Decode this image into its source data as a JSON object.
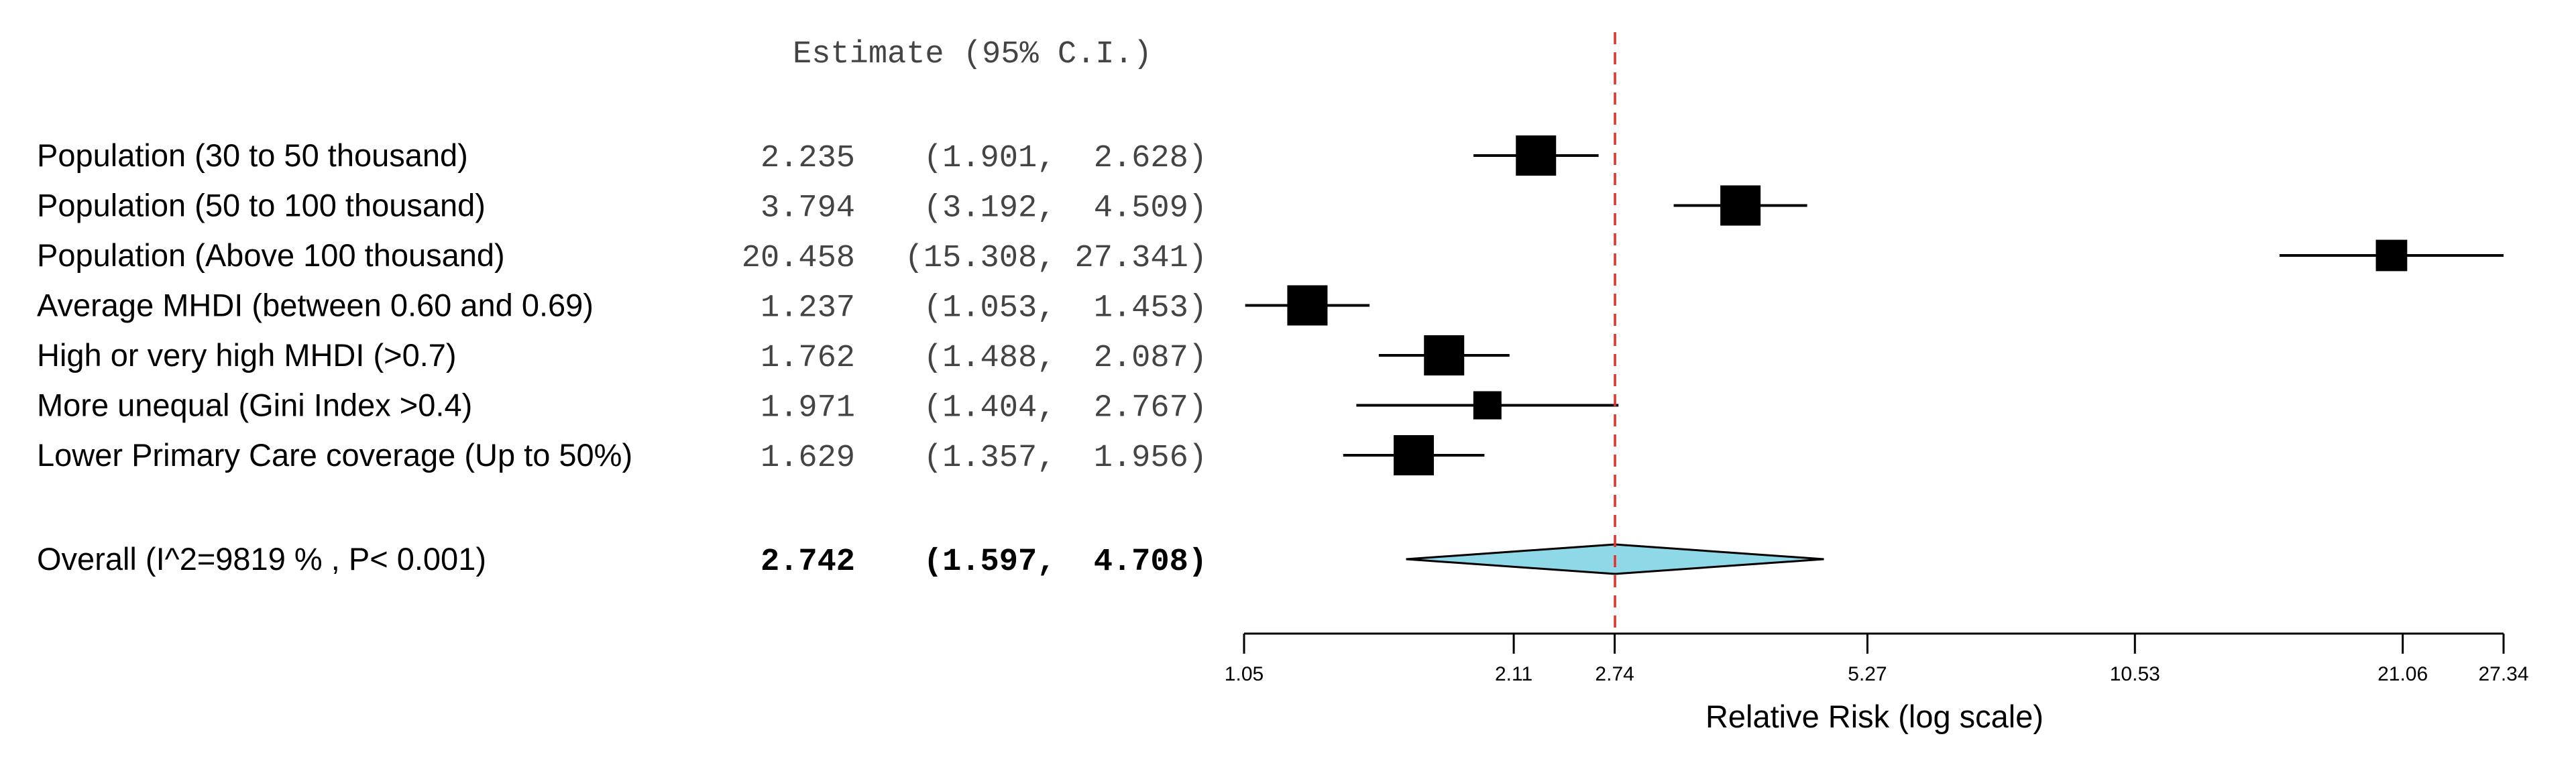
{
  "chart_data": {
    "type": "forest",
    "header": "Estimate (95% C.I.)",
    "xlabel": "Relative Risk (log scale)",
    "x_scale": "log",
    "xlim": [
      1.05,
      27.34
    ],
    "x_ticks": [
      1.05,
      2.11,
      2.74,
      5.27,
      10.53,
      21.06,
      27.34
    ],
    "x_tick_labels": [
      "1.05",
      "2.11",
      "2.74",
      "5.27",
      "10.53",
      "21.06",
      "27.34"
    ],
    "reference_line": 2.742,
    "reference_line_color": "#e8302a",
    "rows": [
      {
        "label": "Population (30 to 50 thousand)",
        "estimate_text": "2.235",
        "ci_text": "(1.901,  2.628)",
        "estimate": 2.235,
        "lower": 1.901,
        "upper": 2.628,
        "weight": 1.0
      },
      {
        "label": "Population (50 to 100 thousand)",
        "estimate_text": "3.794",
        "ci_text": "(3.192,  4.509)",
        "estimate": 3.794,
        "lower": 3.192,
        "upper": 4.509,
        "weight": 1.0
      },
      {
        "label": "Population (Above 100 thousand)",
        "estimate_text": "20.458",
        "ci_text": "(15.308, 27.341)",
        "estimate": 20.458,
        "lower": 15.308,
        "upper": 27.341,
        "weight": 0.78
      },
      {
        "label": "Average MHDI (between 0.60 and 0.69)",
        "estimate_text": "1.237",
        "ci_text": "(1.053,  1.453)",
        "estimate": 1.237,
        "lower": 1.053,
        "upper": 1.453,
        "weight": 1.0
      },
      {
        "label": "High or very high MHDI (>0.7)",
        "estimate_text": "1.762",
        "ci_text": "(1.488,  2.087)",
        "estimate": 1.762,
        "lower": 1.488,
        "upper": 2.087,
        "weight": 1.0
      },
      {
        "label": "More unequal (Gini Index >0.4)",
        "estimate_text": "1.971",
        "ci_text": "(1.404,  2.767)",
        "estimate": 1.971,
        "lower": 1.404,
        "upper": 2.767,
        "weight": 0.7
      },
      {
        "label": "Lower Primary Care coverage (Up to 50%)",
        "estimate_text": "1.629",
        "ci_text": "(1.357,  1.956)",
        "estimate": 1.629,
        "lower": 1.357,
        "upper": 1.956,
        "weight": 1.0
      }
    ],
    "overall": {
      "label": "Overall (I^2=9819 % , P< 0.001)",
      "estimate_text": "2.742",
      "ci_text": "(1.597,  4.708)",
      "estimate": 2.742,
      "lower": 1.597,
      "upper": 4.708,
      "color": "#8fd8e8"
    },
    "grid": false
  }
}
